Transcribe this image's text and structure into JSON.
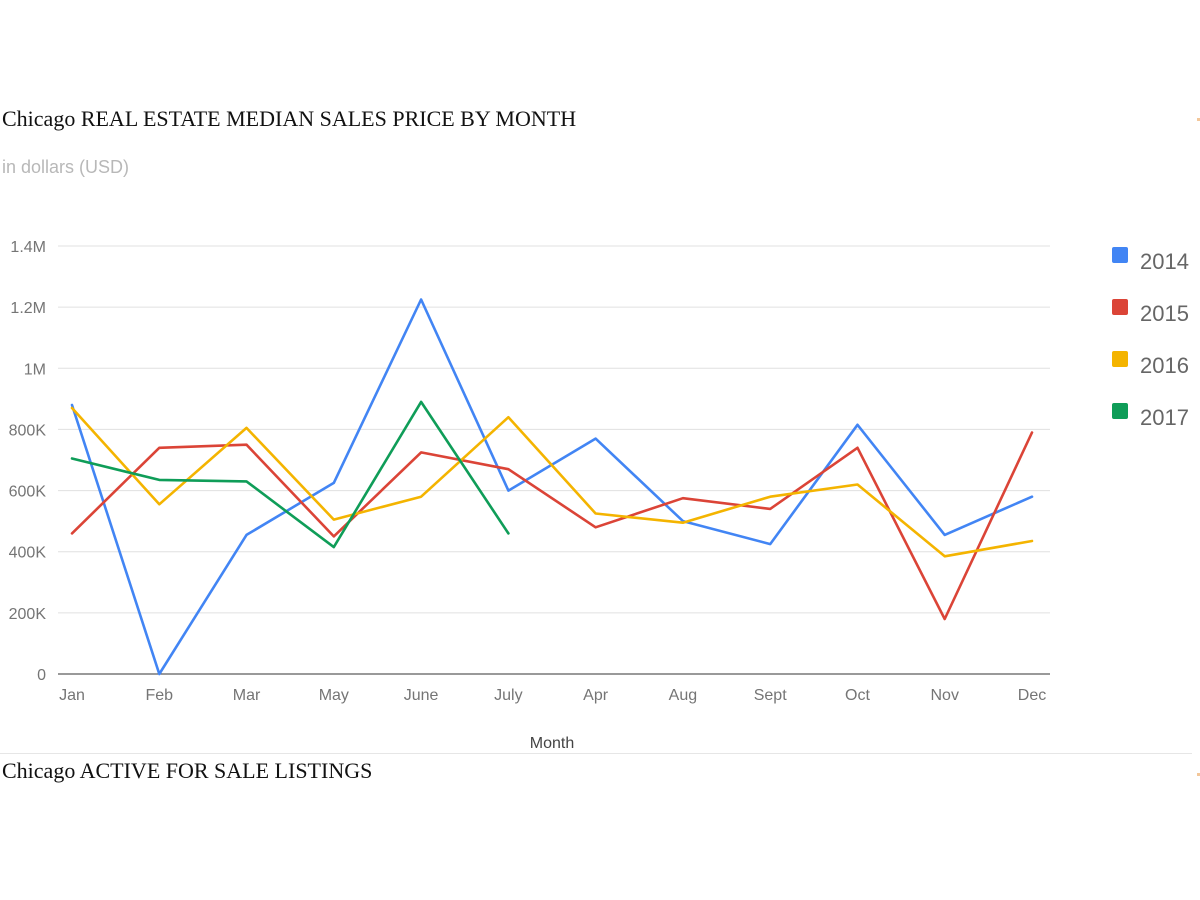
{
  "page": {
    "chart_title": "Chicago REAL ESTATE MEDIAN SALES PRICE BY MONTH",
    "chart_subtitle": "in dollars (USD)",
    "next_section_title": "Chicago ACTIVE FOR SALE LISTINGS"
  },
  "chart_data": {
    "type": "line",
    "title": "Chicago REAL ESTATE MEDIAN SALES PRICE BY MONTH",
    "subtitle": "in dollars (USD)",
    "xlabel": "Month",
    "ylabel": "",
    "categories": [
      "Jan",
      "Feb",
      "Mar",
      "May",
      "June",
      "July",
      "Apr",
      "Aug",
      "Sept",
      "Oct",
      "Nov",
      "Dec"
    ],
    "ylim": [
      0,
      1400000
    ],
    "yticks": [
      0,
      200000,
      400000,
      600000,
      800000,
      1000000,
      1200000,
      1400000
    ],
    "ytick_labels": [
      "0",
      "200K",
      "400K",
      "600K",
      "800K",
      "1M",
      "1.2M",
      "1.4M"
    ],
    "grid": true,
    "legend_position": "right",
    "series": [
      {
        "name": "2014",
        "color": "#4285f4",
        "values": [
          880000,
          0,
          455000,
          625000,
          1225000,
          600000,
          770000,
          500000,
          425000,
          815000,
          455000,
          580000
        ]
      },
      {
        "name": "2015",
        "color": "#db4437",
        "values": [
          460000,
          740000,
          750000,
          450000,
          725000,
          670000,
          480000,
          575000,
          540000,
          740000,
          180000,
          790000
        ]
      },
      {
        "name": "2016",
        "color": "#f4b400",
        "values": [
          870000,
          555000,
          805000,
          505000,
          580000,
          840000,
          525000,
          495000,
          580000,
          620000,
          385000,
          435000
        ]
      },
      {
        "name": "2017",
        "color": "#0f9d58",
        "values": [
          705000,
          635000,
          630000,
          415000,
          890000,
          460000,
          null,
          null,
          null,
          null,
          null,
          null
        ]
      }
    ]
  }
}
